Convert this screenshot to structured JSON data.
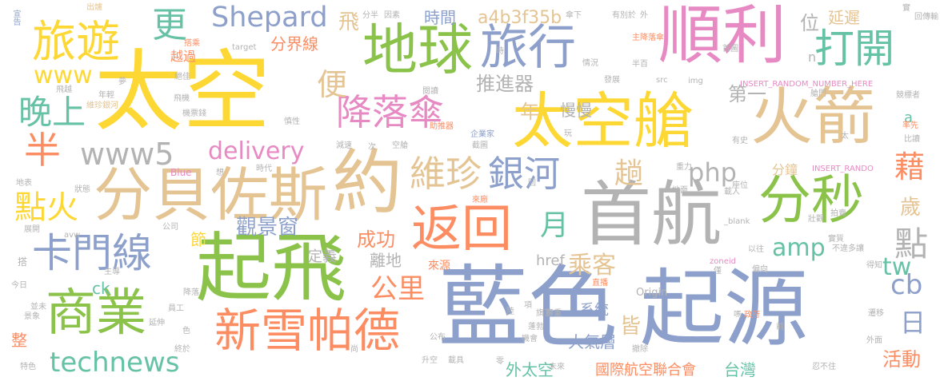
{
  "colors": {
    "yellow": "#fdd835",
    "green": "#8bc34a",
    "blue": "#8da0cb",
    "tan": "#e5c494",
    "orange": "#fc8d62",
    "teal": "#66c2a5",
    "pink": "#e78ac3",
    "gray": "#b3b3b3"
  },
  "words": [
    {
      "text": "太空",
      "color": "yellow",
      "vertical": false
    },
    {
      "text": "藍色",
      "color": "blue",
      "vertical": false
    },
    {
      "text": "起源",
      "color": "blue",
      "vertical": false
    },
    {
      "text": "起飛",
      "color": "green",
      "vertical": false
    },
    {
      "text": "首航",
      "color": "gray",
      "vertical": false
    },
    {
      "text": "約",
      "color": "tan",
      "vertical": false
    },
    {
      "text": "分貝佐斯",
      "color": "tan",
      "vertical": false
    },
    {
      "text": "地球",
      "color": "green",
      "vertical": false
    },
    {
      "text": "旅行",
      "color": "blue",
      "vertical": false
    },
    {
      "text": "順利",
      "color": "pink",
      "vertical": false
    },
    {
      "text": "太空艙",
      "color": "yellow",
      "vertical": false
    },
    {
      "text": "火箭",
      "color": "tan",
      "vertical": false
    },
    {
      "text": "分秒",
      "color": "green",
      "vertical": false
    },
    {
      "text": "返回",
      "color": "orange",
      "vertical": false
    },
    {
      "text": "旅遊",
      "color": "yellow",
      "vertical": false
    },
    {
      "text": "商業",
      "color": "green",
      "vertical": false
    },
    {
      "text": "新雪帕德",
      "color": "orange",
      "vertical": false
    },
    {
      "text": "卡門線",
      "color": "blue",
      "vertical": false
    },
    {
      "text": "降落傘",
      "color": "pink",
      "vertical": false
    },
    {
      "text": "打開",
      "color": "teal",
      "vertical": false
    },
    {
      "text": "Shepard",
      "color": "blue",
      "vertical": false
    },
    {
      "text": "維珍",
      "color": "tan",
      "vertical": false
    },
    {
      "text": "銀河",
      "color": "blue",
      "vertical": false
    },
    {
      "text": "www5",
      "color": "gray",
      "vertical": false
    },
    {
      "text": "delivery",
      "color": "pink",
      "vertical": false
    },
    {
      "text": "technews",
      "color": "teal",
      "vertical": false
    },
    {
      "text": "晚上",
      "color": "teal",
      "vertical": false
    },
    {
      "text": "點火",
      "color": "yellow",
      "vertical": false
    },
    {
      "text": "半",
      "color": "orange",
      "vertical": false
    },
    {
      "text": "www",
      "color": "yellow",
      "vertical": false
    },
    {
      "text": "更",
      "color": "teal",
      "vertical": false
    },
    {
      "text": "便",
      "color": "tan",
      "vertical": false
    },
    {
      "text": "公里",
      "color": "orange",
      "vertical": false
    },
    {
      "text": "觀景窗",
      "color": "blue",
      "vertical": false
    },
    {
      "text": "成功",
      "color": "orange",
      "vertical": false
    },
    {
      "text": "乘客",
      "color": "tan",
      "vertical": false
    },
    {
      "text": "月",
      "color": "teal",
      "vertical": false
    },
    {
      "text": "php",
      "color": "gray",
      "vertical": false
    },
    {
      "text": "amp",
      "color": "teal",
      "vertical": false
    },
    {
      "text": "tw",
      "color": "teal",
      "vertical": false
    },
    {
      "text": "趟",
      "color": "tan",
      "vertical": false
    },
    {
      "text": "推進器",
      "color": "gray",
      "vertical": false
    },
    {
      "text": "慢慢",
      "color": "gray",
      "vertical": false
    },
    {
      "text": "第一",
      "color": "gray",
      "vertical": false
    },
    {
      "text": "時間",
      "color": "blue",
      "vertical": false
    },
    {
      "text": "a4b3f35b",
      "color": "tan",
      "vertical": false
    },
    {
      "text": "飛",
      "color": "tan",
      "vertical": false
    },
    {
      "text": "分界線",
      "color": "orange",
      "vertical": false
    },
    {
      "text": "越過",
      "color": "orange",
      "vertical": false
    },
    {
      "text": "位",
      "color": "gray",
      "vertical": false
    },
    {
      "text": "延遲",
      "color": "tan",
      "vertical": false
    },
    {
      "text": "點",
      "color": "gray",
      "vertical": false
    },
    {
      "text": "藉",
      "color": "orange",
      "vertical": false
    },
    {
      "text": "歲",
      "color": "tan",
      "vertical": false
    },
    {
      "text": "日",
      "color": "blue",
      "vertical": false
    },
    {
      "text": "cb",
      "color": "blue",
      "vertical": false
    },
    {
      "text": "活動",
      "color": "orange",
      "vertical": false
    },
    {
      "text": "分鐘",
      "color": "tan",
      "vertical": false
    },
    {
      "text": "年",
      "color": "tan",
      "vertical": false
    },
    {
      "text": "節",
      "color": "yellow",
      "vertical": false
    },
    {
      "text": "定義",
      "color": "gray",
      "vertical": false
    },
    {
      "text": "離地",
      "color": "gray",
      "vertical": false
    },
    {
      "text": "來源",
      "color": "orange",
      "vertical": false
    },
    {
      "text": "href",
      "color": "gray",
      "vertical": false
    },
    {
      "text": "皆",
      "color": "tan",
      "vertical": false
    },
    {
      "text": "系統",
      "color": "blue",
      "vertical": false
    },
    {
      "text": "大氣層",
      "color": "blue",
      "vertical": false
    },
    {
      "text": "外太空",
      "color": "teal",
      "vertical": false
    },
    {
      "text": "國際航空聯合會",
      "color": "orange",
      "vertical": false
    },
    {
      "text": "台灣",
      "color": "teal",
      "vertical": false
    },
    {
      "text": "整",
      "color": "orange",
      "vertical": false
    },
    {
      "text": "ck",
      "color": "teal",
      "vertical": false
    },
    {
      "text": "a",
      "color": "teal",
      "vertical": false
    },
    {
      "text": "INSERT_RANDOM_NUMBER_HERE",
      "color": "pink",
      "vertical": false
    },
    {
      "text": "INSERT_RANDO",
      "color": "pink",
      "vertical": false
    },
    {
      "text": "n",
      "color": "gray",
      "vertical": false
    },
    {
      "text": "Origin",
      "color": "gray",
      "vertical": false
    },
    {
      "text": "Blue",
      "color": "pink",
      "vertical": false
    },
    {
      "text": "avw",
      "color": "gray",
      "vertical": false
    },
    {
      "text": "target",
      "color": "gray",
      "vertical": false
    },
    {
      "text": "src",
      "color": "gray",
      "vertical": false
    },
    {
      "text": "img",
      "color": "gray",
      "vertical": false
    },
    {
      "text": "_blank",
      "color": "gray",
      "vertical": false
    },
    {
      "text": "zoneid",
      "color": "pink",
      "vertical": false
    },
    {
      "text": "宣告",
      "color": "blue",
      "vertical": true
    },
    {
      "text": "出爐",
      "color": "tan",
      "vertical": false
    },
    {
      "text": "搭乘",
      "color": "orange",
      "vertical": false
    },
    {
      "text": "維珍銀河",
      "color": "tan",
      "vertical": false
    },
    {
      "text": "機票錢",
      "color": "gray",
      "vertical": false
    },
    {
      "text": "慎性",
      "color": "gray",
      "vertical": false
    },
    {
      "text": "減速",
      "color": "gray",
      "vertical": false
    },
    {
      "text": "空艙",
      "color": "gray",
      "vertical": false
    },
    {
      "text": "截圖",
      "color": "gray",
      "vertical": false
    },
    {
      "text": "助推器",
      "color": "orange",
      "vertical": false
    },
    {
      "text": "企業家",
      "color": "blue",
      "vertical": false
    },
    {
      "text": "情況",
      "color": "gray",
      "vertical": false
    },
    {
      "text": "發展",
      "color": "gray",
      "vertical": false
    },
    {
      "text": "半百",
      "color": "gray",
      "vertical": false
    },
    {
      "text": "首圖",
      "color": "gray",
      "vertical": false
    },
    {
      "text": "重力",
      "color": "gray",
      "vertical": false
    },
    {
      "text": "座位",
      "color": "gray",
      "vertical": false
    },
    {
      "text": "地面",
      "color": "gray",
      "vertical": false
    },
    {
      "text": "載人",
      "color": "gray",
      "vertical": false
    },
    {
      "text": "直播",
      "color": "orange",
      "vertical": false
    },
    {
      "text": "偏向",
      "color": "gray",
      "vertical": false
    },
    {
      "text": "以往",
      "color": "gray",
      "vertical": false
    },
    {
      "text": "政府",
      "color": "orange",
      "vertical": false
    },
    {
      "text": "公布",
      "color": "gray",
      "vertical": false
    },
    {
      "text": "機會",
      "color": "gray",
      "vertical": false
    },
    {
      "text": "撤除",
      "color": "gray",
      "vertical": false
    },
    {
      "text": "升空",
      "color": "gray",
      "vertical": false
    },
    {
      "text": "載具",
      "color": "gray",
      "vertical": false
    },
    {
      "text": "未來",
      "color": "gray",
      "vertical": false
    },
    {
      "text": "特色",
      "color": "gray",
      "vertical": false
    },
    {
      "text": "終於",
      "color": "gray",
      "vertical": false
    },
    {
      "text": "員工",
      "color": "gray",
      "vertical": false
    },
    {
      "text": "主導",
      "color": "gray",
      "vertical": false
    },
    {
      "text": "今日",
      "color": "gray",
      "vertical": false
    },
    {
      "text": "並未",
      "color": "gray",
      "vertical": false
    },
    {
      "text": "景象",
      "color": "gray",
      "vertical": false
    },
    {
      "text": "地表",
      "color": "gray",
      "vertical": false
    },
    {
      "text": "展開",
      "color": "gray",
      "vertical": false
    },
    {
      "text": "狀態",
      "color": "gray",
      "vertical": false
    },
    {
      "text": "公司",
      "color": "gray",
      "vertical": false
    },
    {
      "text": "延伸",
      "color": "gray",
      "vertical": false
    },
    {
      "text": "降落",
      "color": "gray",
      "vertical": false
    },
    {
      "text": "時代",
      "color": "gray",
      "vertical": false
    },
    {
      "text": "想",
      "color": "gray",
      "vertical": false
    },
    {
      "text": "分半",
      "color": "gray",
      "vertical": false
    },
    {
      "text": "因素",
      "color": "gray",
      "vertical": false
    },
    {
      "text": "傘下",
      "color": "gray",
      "vertical": false
    },
    {
      "text": "有別於",
      "color": "gray",
      "vertical": false
    },
    {
      "text": "外",
      "color": "gray",
      "vertical": false
    },
    {
      "text": "回傳輸",
      "color": "gray",
      "vertical": false
    },
    {
      "text": "主降落傘",
      "color": "orange",
      "vertical": false
    },
    {
      "text": "比讀",
      "color": "gray",
      "vertical": false
    },
    {
      "text": "壯觀",
      "color": "gray",
      "vertical": false
    },
    {
      "text": "拍賣",
      "color": "gray",
      "vertical": false
    },
    {
      "text": "得知",
      "color": "gray",
      "vertical": false
    },
    {
      "text": "實質",
      "color": "gray",
      "vertical": false
    },
    {
      "text": "遷移",
      "color": "gray",
      "vertical": false
    },
    {
      "text": "外面",
      "color": "gray",
      "vertical": false
    },
    {
      "text": "忍不住",
      "color": "gray",
      "vertical": false
    },
    {
      "text": "不違多讓",
      "color": "gray",
      "vertical": false
    },
    {
      "text": "競標者",
      "color": "gray",
      "vertical": false
    },
    {
      "text": "率先",
      "color": "orange",
      "vertical": false
    },
    {
      "text": "艙門",
      "color": "gray",
      "vertical": false
    },
    {
      "text": "有史",
      "color": "gray",
      "vertical": false
    },
    {
      "text": "年輕",
      "color": "gray",
      "vertical": false
    },
    {
      "text": "飛越",
      "color": "gray",
      "vertical": false
    },
    {
      "text": "飛機",
      "color": "gray",
      "vertical": false
    },
    {
      "text": "絕佳",
      "color": "gray",
      "vertical": false
    },
    {
      "text": "閱讀",
      "color": "gray",
      "vertical": false
    },
    {
      "text": "來廠",
      "color": "orange",
      "vertical": false
    },
    {
      "text": "旗下",
      "color": "gray",
      "vertical": false
    },
    {
      "text": "蓬勃",
      "color": "gray",
      "vertical": false
    },
    {
      "text": "腳重",
      "color": "gray",
      "vertical": false
    },
    {
      "text": "陸",
      "color": "gray",
      "vertical": false
    },
    {
      "text": "僅",
      "color": "gray",
      "vertical": false
    },
    {
      "text": "嗎",
      "color": "gray",
      "vertical": false
    },
    {
      "text": "前",
      "color": "gray",
      "vertical": false
    },
    {
      "text": "項",
      "color": "gray",
      "vertical": false
    },
    {
      "text": "尚",
      "color": "gray",
      "vertical": false
    },
    {
      "text": "零",
      "color": "gray",
      "vertical": false
    },
    {
      "text": "色",
      "color": "gray",
      "vertical": false
    },
    {
      "text": "玩",
      "color": "gray",
      "vertical": false
    },
    {
      "text": "時",
      "color": "gray",
      "vertical": false
    },
    {
      "text": "夢",
      "color": "gray",
      "vertical": false
    },
    {
      "text": "太",
      "color": "gray",
      "vertical": false
    },
    {
      "text": "次",
      "color": "gray",
      "vertical": false
    },
    {
      "text": "搭",
      "color": "gray",
      "vertical": false
    },
    {
      "text": "回",
      "color": "gray",
      "vertical": false
    },
    {
      "text": "實",
      "color": "gray",
      "vertical": false
    }
  ]
}
